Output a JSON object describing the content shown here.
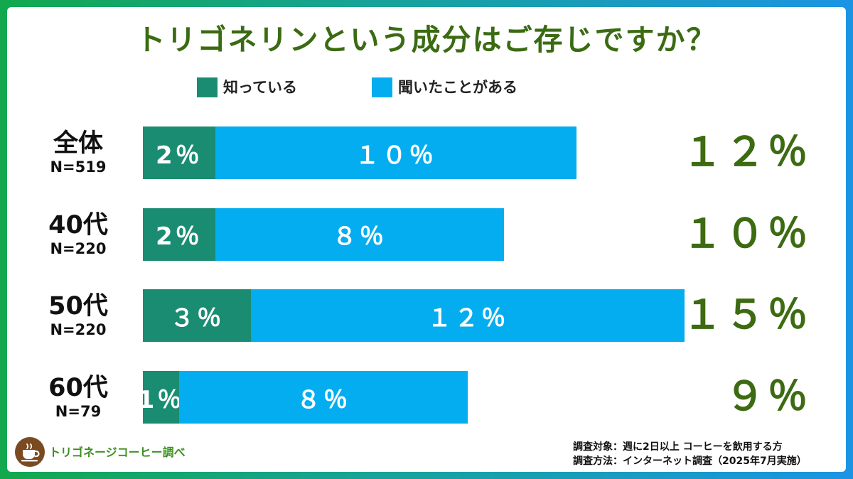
{
  "colors": {
    "title": "#3a6b12",
    "total": "#3d6b12",
    "logo_circle": "#7a4a22",
    "source_text": "#3b8f1f"
  },
  "chart_data": {
    "type": "bar",
    "stacked": true,
    "title": "トリゴネリンという成分はご存じですか？",
    "categories": [
      "全体",
      "40代",
      "50代",
      "60代"
    ],
    "sample_sizes": [
      "N=519",
      "N=220",
      "N=220",
      "N=79"
    ],
    "series": [
      {
        "name": "知っている",
        "color": "#1a8c72",
        "values": [
          2,
          2,
          3,
          1
        ],
        "labels": [
          "2％",
          "2％",
          "３％",
          "1％"
        ]
      },
      {
        "name": "聞いたことがある",
        "color": "#03adef",
        "values": [
          10,
          8,
          12,
          8
        ],
        "labels": [
          "１０％",
          "８％",
          "１２％",
          "８％"
        ]
      }
    ],
    "totals": {
      "values": [
        12,
        10,
        15,
        9
      ],
      "labels": [
        "１２％",
        "１０％",
        "１５％",
        "９％"
      ]
    }
  },
  "footer": {
    "logo_icon": "coffee-cup-icon",
    "source": "トリゴネージコーヒー調べ",
    "notes": [
      "調査対象：週に2日以上 コーヒーを飲用する方",
      "調査方法：インターネット調査（2025年7月実施）"
    ]
  }
}
